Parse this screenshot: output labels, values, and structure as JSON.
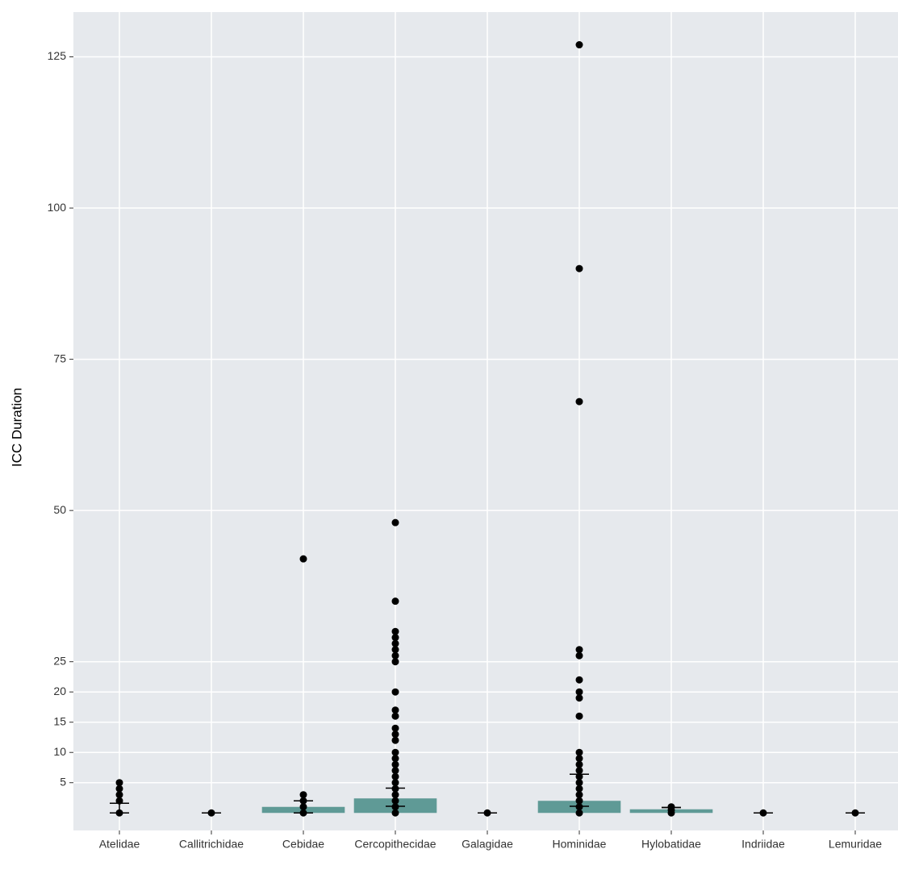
{
  "chart_data": {
    "type": "bar",
    "y_label": "ICC Duration",
    "categories": [
      "Atelidae",
      "Callitrichidae",
      "Cebidae",
      "Cercopithecidae",
      "Galagidae",
      "Hominidae",
      "Hylobatidae",
      "Indriidae",
      "Lemuridae"
    ],
    "values": [
      0,
      0,
      1,
      2.4,
      0,
      2,
      0.6,
      0,
      0
    ],
    "color": "#5f9a96",
    "points": [
      [
        0,
        2,
        3,
        4,
        5
      ],
      [
        0
      ],
      [
        0,
        1,
        2,
        3,
        42
      ],
      [
        0,
        1,
        2,
        3,
        4,
        5,
        6,
        7,
        8,
        9,
        10,
        12,
        13,
        14,
        16,
        17,
        20,
        25,
        26,
        27,
        28,
        29,
        30,
        35,
        48
      ],
      [
        0
      ],
      [
        0,
        1,
        2,
        3,
        4,
        5,
        6,
        7,
        8,
        9,
        10,
        16,
        19,
        20,
        22,
        26,
        27,
        68,
        90,
        127
      ],
      [
        0,
        0.5,
        1
      ],
      [
        0
      ],
      [
        0
      ]
    ],
    "point_color": "#000000",
    "errors": [
      [
        0,
        1.6
      ],
      [
        0,
        0
      ],
      [
        0,
        2
      ],
      [
        1.1,
        4.1
      ],
      [
        0,
        0
      ],
      [
        1.1,
        6.4
      ],
      [
        0.9,
        0.9
      ],
      [
        0,
        0
      ],
      [
        0,
        0
      ]
    ],
    "ylim": [
      -2.9,
      132.4
    ],
    "yticks": [
      5,
      10,
      15,
      20,
      25,
      50,
      75,
      100,
      125
    ],
    "grid": true
  }
}
